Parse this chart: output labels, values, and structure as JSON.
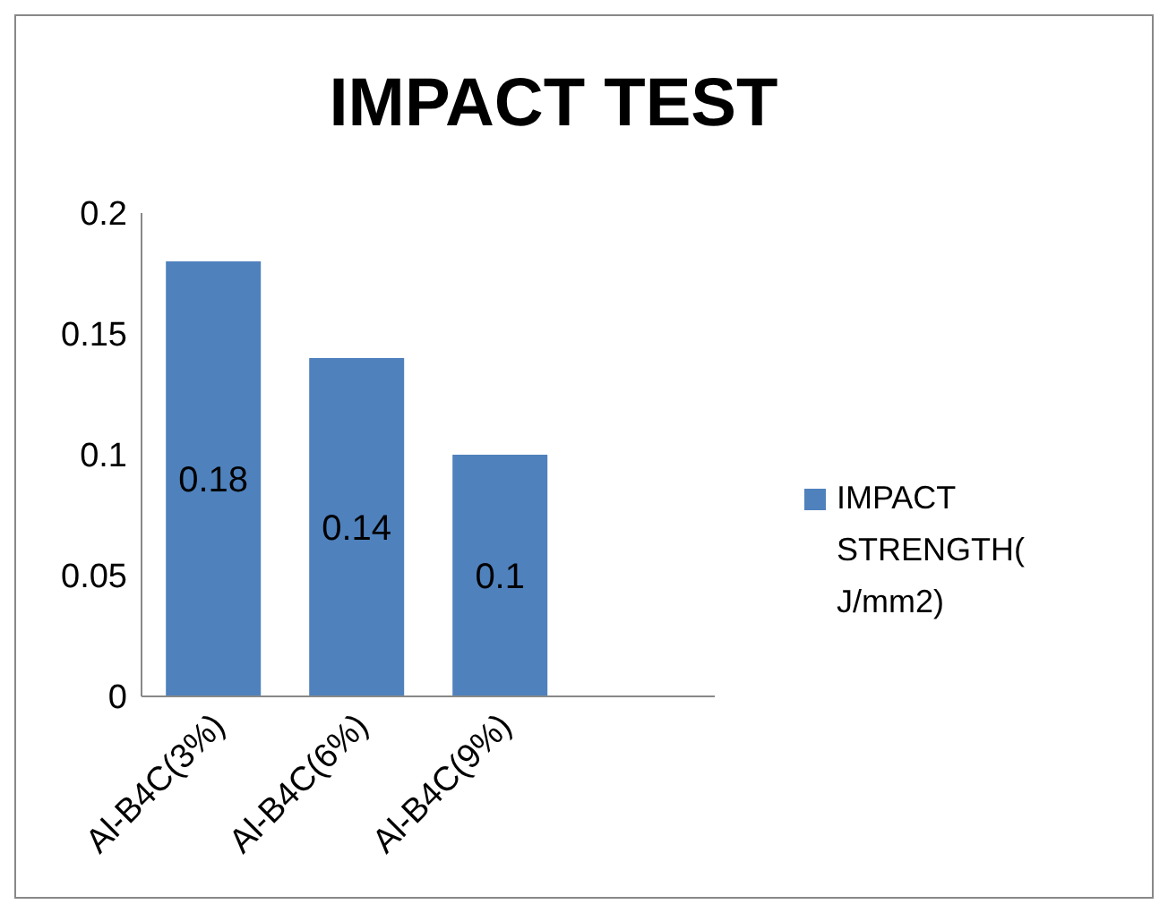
{
  "chart_data": {
    "type": "bar",
    "title": "IMPACT TEST",
    "categories": [
      "Al-B4C(3%)",
      "Al-B4C(6%)",
      "Al-B4C(9%)",
      null
    ],
    "series": [
      {
        "name": "IMPACT STRENGTH(J/mm2)",
        "color": "#4f81bd",
        "values": [
          0.18,
          0.14,
          0.1,
          null
        ]
      }
    ],
    "ylim": [
      0,
      0.2
    ],
    "yticks": [
      0,
      0.05,
      0.1,
      0.15,
      0.2
    ],
    "grid": false,
    "legend": "right",
    "data_labels": true
  }
}
